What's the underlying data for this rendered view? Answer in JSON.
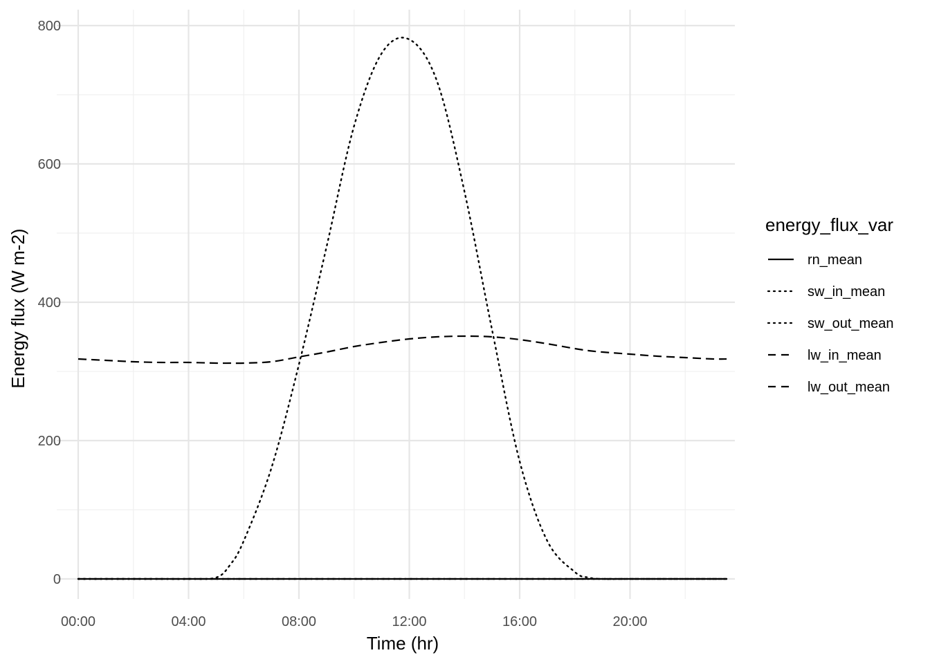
{
  "chart_data": {
    "type": "line",
    "xlabel": "Time (hr)",
    "ylabel": "Energy flux (W m-2)",
    "x_ticks": [
      "00:00",
      "04:00",
      "08:00",
      "12:00",
      "16:00",
      "20:00"
    ],
    "x_tick_hours": [
      0,
      4,
      8,
      12,
      16,
      20
    ],
    "xlim_hours": [
      0,
      23.5
    ],
    "y_ticks": [
      "0",
      "200",
      "400",
      "600",
      "800"
    ],
    "y_tick_values": [
      0,
      200,
      400,
      600,
      800
    ],
    "ylim": [
      -60,
      820
    ],
    "grid": true,
    "legend": {
      "title": "energy_flux_var",
      "position": "right",
      "entries": [
        {
          "label": "rn_mean",
          "linetype": "solid"
        },
        {
          "label": "sw_in_mean",
          "linetype": "dotted"
        },
        {
          "label": "sw_out_mean",
          "linetype": "dotted"
        },
        {
          "label": "lw_in_mean",
          "linetype": "dashed"
        },
        {
          "label": "lw_out_mean",
          "linetype": "dashed"
        }
      ]
    },
    "x_hours": [
      0,
      1,
      2,
      3,
      4,
      5,
      5.5,
      6,
      7,
      8,
      9,
      10,
      11,
      12,
      13,
      14,
      15,
      16,
      17,
      18,
      18.5,
      19,
      20,
      21,
      22,
      23,
      23.5
    ],
    "series": [
      {
        "name": "rn_mean",
        "linetype": "solid",
        "values": [
          0,
          0,
          0,
          0,
          0,
          0,
          0,
          0,
          0,
          0,
          0,
          0,
          0,
          0,
          0,
          0,
          0,
          0,
          0,
          0,
          0,
          0,
          0,
          0,
          0,
          0,
          0
        ]
      },
      {
        "name": "sw_in_mean",
        "linetype": "dotted",
        "values": [
          0,
          0,
          0,
          0,
          0,
          2,
          20,
          55,
          160,
          310,
          480,
          655,
          760,
          780,
          720,
          560,
          360,
          170,
          55,
          10,
          2,
          0,
          0,
          0,
          0,
          0,
          0
        ]
      },
      {
        "name": "sw_out_mean",
        "linetype": "dotted",
        "values": [
          0,
          0,
          0,
          0,
          0,
          0,
          0,
          0,
          0,
          0,
          0,
          0,
          0,
          0,
          0,
          0,
          0,
          0,
          0,
          0,
          0,
          0,
          0,
          0,
          0,
          0,
          0
        ]
      },
      {
        "name": "lw_in_mean",
        "linetype": "dashed",
        "values": [
          0,
          0,
          0,
          0,
          0,
          0,
          0,
          0,
          0,
          0,
          0,
          0,
          0,
          0,
          0,
          0,
          0,
          0,
          0,
          0,
          0,
          0,
          0,
          0,
          0,
          0,
          0
        ]
      },
      {
        "name": "lw_out_mean",
        "linetype": "dashed",
        "values": [
          318,
          316,
          314,
          313,
          313,
          312,
          312,
          312,
          314,
          321,
          328,
          336,
          342,
          347,
          350,
          351,
          350,
          346,
          340,
          333,
          330,
          328,
          325,
          322,
          320,
          318,
          318
        ]
      }
    ]
  }
}
